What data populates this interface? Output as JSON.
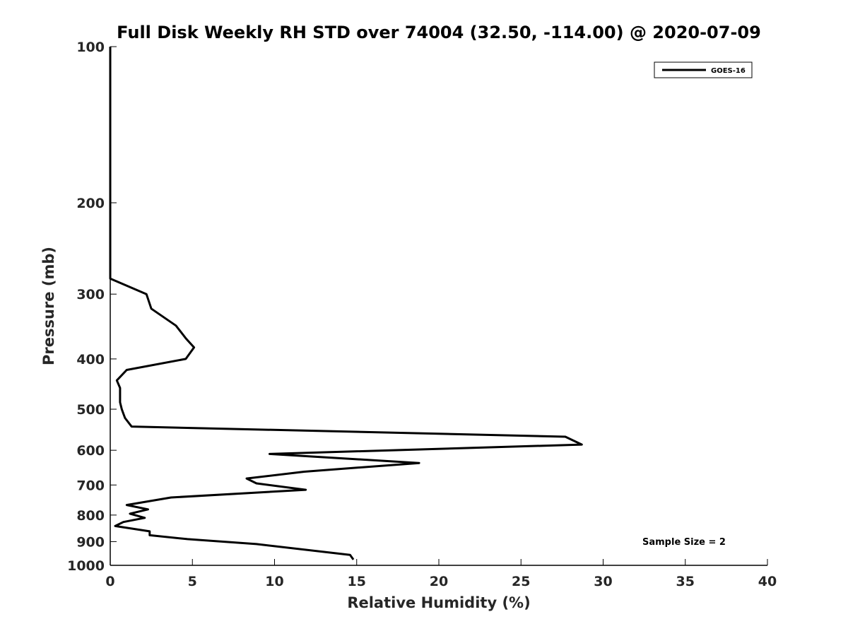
{
  "chart_data": {
    "type": "line",
    "title": "Full Disk Weekly RH STD over 74004 (32.50, -114.00) @ 2020-07-09",
    "xlabel": "Relative Humidity (%)",
    "ylabel": "Pressure (mb)",
    "xlim": [
      0,
      40
    ],
    "ylim": [
      100,
      1000
    ],
    "y_scale": "log",
    "y_reversed": true,
    "grid": false,
    "legend_position": "top-right",
    "x_ticks": [
      "0",
      "5",
      "10",
      "15",
      "20",
      "25",
      "30",
      "35",
      "40"
    ],
    "y_ticks": [
      "100",
      "200",
      "300",
      "400",
      "500",
      "600",
      "700",
      "800",
      "900",
      "1000"
    ],
    "annotation": "Sample Size = 2",
    "series": [
      {
        "name": "GOES-16",
        "color": "#000000",
        "points": [
          [
            0,
            100
          ],
          [
            0,
            150
          ],
          [
            0,
            200
          ],
          [
            0,
            250
          ],
          [
            0,
            280
          ],
          [
            2.2,
            300
          ],
          [
            2.5,
            320
          ],
          [
            4.0,
            345
          ],
          [
            4.6,
            365
          ],
          [
            5.1,
            380
          ],
          [
            4.6,
            400
          ],
          [
            1.0,
            420
          ],
          [
            0.4,
            440
          ],
          [
            0.6,
            455
          ],
          [
            0.6,
            470
          ],
          [
            0.6,
            485
          ],
          [
            0.7,
            500
          ],
          [
            0.8,
            510
          ],
          [
            0.9,
            520
          ],
          [
            1.3,
            540
          ],
          [
            27.7,
            565
          ],
          [
            28.7,
            585
          ],
          [
            9.7,
            610
          ],
          [
            18.8,
            635
          ],
          [
            11.8,
            660
          ],
          [
            8.3,
            680
          ],
          [
            8.9,
            695
          ],
          [
            11.9,
            715
          ],
          [
            3.7,
            740
          ],
          [
            1.0,
            765
          ],
          [
            2.3,
            780
          ],
          [
            1.2,
            795
          ],
          [
            2.1,
            810
          ],
          [
            0.8,
            825
          ],
          [
            0.3,
            840
          ],
          [
            2.4,
            860
          ],
          [
            2.4,
            875
          ],
          [
            4.7,
            890
          ],
          [
            8.9,
            910
          ],
          [
            14.6,
            955
          ],
          [
            14.8,
            975
          ]
        ]
      }
    ]
  }
}
